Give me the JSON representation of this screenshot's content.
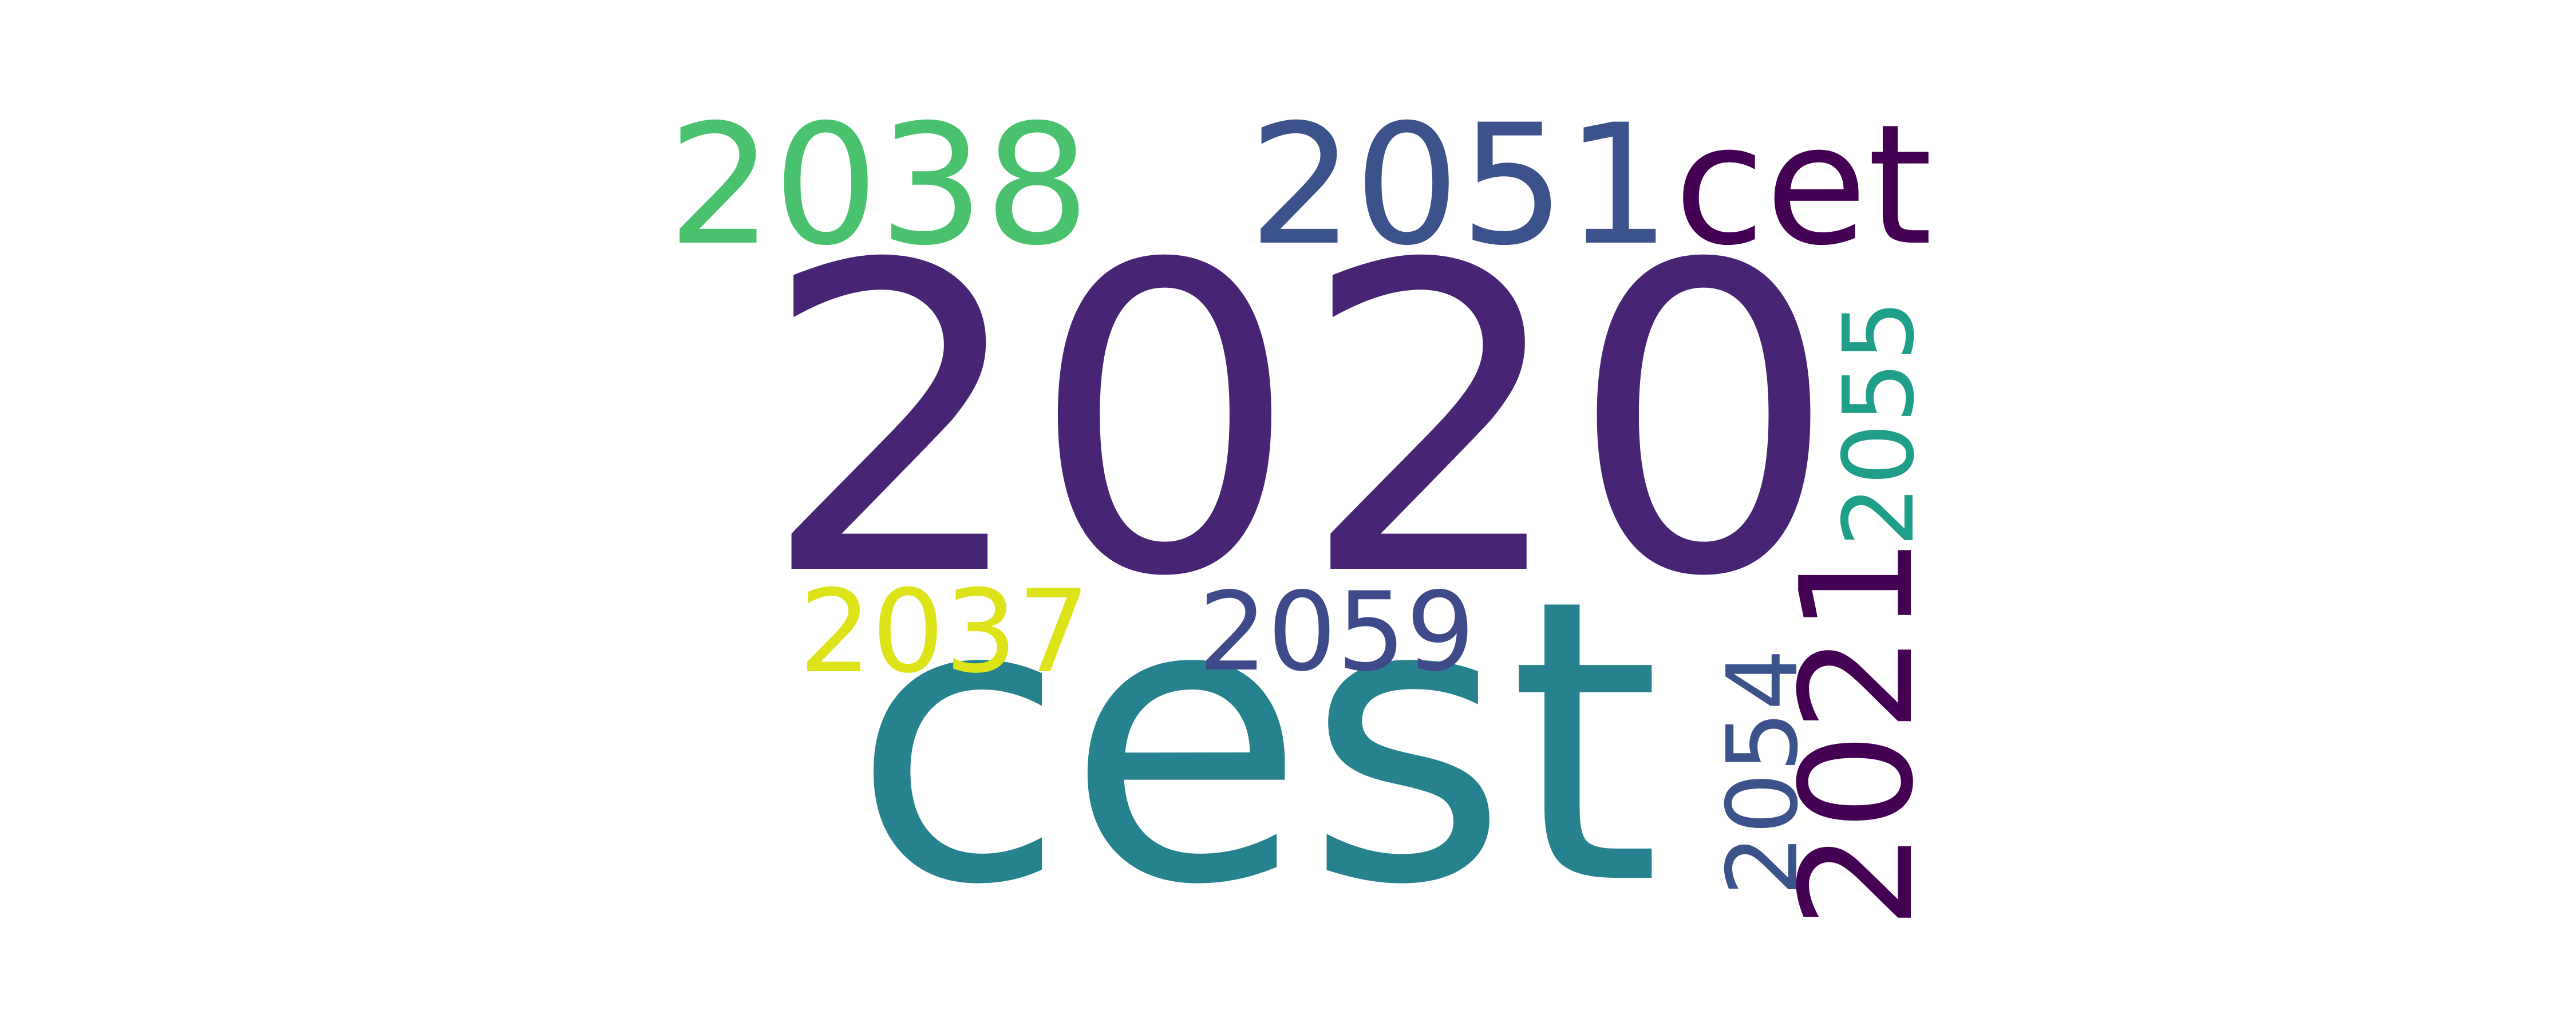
{
  "words": [
    {
      "text": "2020",
      "color": "#482475"
    },
    {
      "text": "cest",
      "color": "#26828e"
    },
    {
      "text": "2038",
      "color": "#4ac16d"
    },
    {
      "text": "2051",
      "color": "#3b528b"
    },
    {
      "text": "cet",
      "color": "#440154"
    },
    {
      "text": "2037",
      "color": "#dde318"
    },
    {
      "text": "2059",
      "color": "#3e4a89"
    },
    {
      "text": "2055",
      "color": "#1f9e89"
    },
    {
      "text": "2021",
      "color": "#440154"
    },
    {
      "text": "2054",
      "color": "#3b528b"
    }
  ]
}
